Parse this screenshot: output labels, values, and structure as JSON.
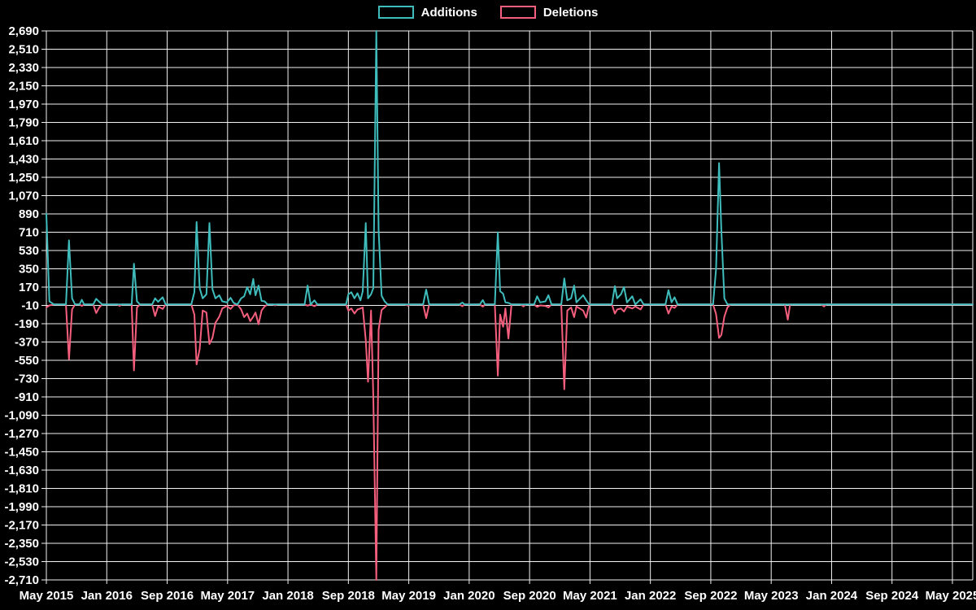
{
  "page": {
    "background_color": "#000000",
    "text_color": "#ffffff",
    "grid_color": "#f2f2f2"
  },
  "legend": {
    "items": [
      {
        "label": "Additions",
        "color": "#3fbcbc"
      },
      {
        "label": "Deletions",
        "color": "#f55f7d"
      }
    ]
  },
  "chart_data": {
    "type": "line",
    "title": "",
    "description": "Weekly code additions (teal, positive) and deletions (pink, negative) over time",
    "legend_position": "top-center",
    "grid": true,
    "x_axis": {
      "tick_labels": [
        "May 2015",
        "Jan 2016",
        "Sep 2016",
        "May 2017",
        "Jan 2018",
        "Sep 2018",
        "May 2019",
        "Jan 2020",
        "Sep 2020",
        "May 2021",
        "Jan 2022",
        "Sep 2022",
        "May 2023",
        "Jan 2024",
        "Sep 2024",
        "May 2025"
      ],
      "months_per_tick": 8,
      "months_total_plotted": 122.7
    },
    "y_axis": {
      "min": -2710,
      "max": 2690,
      "tick_step": 180,
      "baseline_value": 0
    },
    "series": [
      {
        "name": "Additions",
        "color": "#3fbcbc",
        "value_index": 1
      },
      {
        "name": "Deletions",
        "color": "#f55f7d",
        "value_index": 2
      }
    ],
    "points_format": "[months_since_May_2015, additions, deletions]",
    "points": [
      [
        0,
        890,
        -30
      ],
      [
        0.4,
        30,
        -10
      ],
      [
        1,
        0,
        0
      ],
      [
        2.6,
        0,
        0
      ],
      [
        3,
        630,
        -540
      ],
      [
        3.4,
        60,
        -50
      ],
      [
        3.8,
        0,
        0
      ],
      [
        4.4,
        0,
        0
      ],
      [
        4.7,
        45,
        -15
      ],
      [
        5,
        0,
        0
      ],
      [
        6.2,
        0,
        0
      ],
      [
        6.6,
        55,
        -85
      ],
      [
        7,
        25,
        -30
      ],
      [
        7.4,
        0,
        0
      ],
      [
        9.4,
        0,
        0
      ],
      [
        9.7,
        0,
        -15
      ],
      [
        10,
        0,
        0
      ],
      [
        11.3,
        0,
        0
      ],
      [
        11.6,
        400,
        -650
      ],
      [
        12,
        30,
        -30
      ],
      [
        12.4,
        0,
        0
      ],
      [
        14,
        0,
        0
      ],
      [
        14.4,
        60,
        -115
      ],
      [
        14.8,
        25,
        -20
      ],
      [
        15.4,
        70,
        -45
      ],
      [
        15.8,
        0,
        0
      ],
      [
        19.2,
        0,
        0
      ],
      [
        19.6,
        120,
        -100
      ],
      [
        19.9,
        810,
        -590
      ],
      [
        20.3,
        160,
        -440
      ],
      [
        20.7,
        60,
        -60
      ],
      [
        21.2,
        100,
        -80
      ],
      [
        21.6,
        800,
        -390
      ],
      [
        22,
        150,
        -330
      ],
      [
        22.4,
        60,
        -180
      ],
      [
        22.9,
        90,
        -120
      ],
      [
        23.3,
        30,
        -40
      ],
      [
        23.9,
        20,
        -15
      ],
      [
        24.4,
        65,
        -45
      ],
      [
        24.8,
        15,
        -10
      ],
      [
        25.3,
        0,
        0
      ],
      [
        25.8,
        60,
        -50
      ],
      [
        26.2,
        80,
        -125
      ],
      [
        26.6,
        170,
        -90
      ],
      [
        27,
        100,
        -165
      ],
      [
        27.4,
        250,
        -120
      ],
      [
        27.7,
        90,
        -80
      ],
      [
        28.1,
        185,
        -195
      ],
      [
        28.5,
        35,
        -60
      ],
      [
        28.9,
        30,
        -20
      ],
      [
        29.3,
        0,
        0
      ],
      [
        30,
        0,
        0
      ],
      [
        30.3,
        0,
        -10
      ],
      [
        30.6,
        0,
        0
      ],
      [
        34.2,
        0,
        0
      ],
      [
        34.6,
        185,
        -12
      ],
      [
        35,
        0,
        0
      ],
      [
        35.5,
        40,
        -18
      ],
      [
        35.9,
        0,
        0
      ],
      [
        39.7,
        0,
        0
      ],
      [
        40,
        100,
        -60
      ],
      [
        40.4,
        120,
        -40
      ],
      [
        40.8,
        60,
        -90
      ],
      [
        41.2,
        110,
        -50
      ],
      [
        41.6,
        40,
        -40
      ],
      [
        41.9,
        130,
        -30
      ],
      [
        42.3,
        800,
        -350
      ],
      [
        42.6,
        60,
        -760
      ],
      [
        43,
        100,
        -60
      ],
      [
        43.3,
        160,
        -915
      ],
      [
        43.7,
        2690,
        -2710
      ],
      [
        44,
        730,
        -250
      ],
      [
        44.4,
        85,
        -55
      ],
      [
        44.8,
        30,
        -30
      ],
      [
        45.2,
        0,
        0
      ],
      [
        47.5,
        0,
        0
      ],
      [
        47.9,
        0,
        -12
      ],
      [
        48.2,
        0,
        0
      ],
      [
        49.9,
        0,
        0
      ],
      [
        50.3,
        145,
        -135
      ],
      [
        50.7,
        0,
        0
      ],
      [
        54.7,
        0,
        0
      ],
      [
        55.1,
        18,
        -18
      ],
      [
        55.4,
        0,
        0
      ],
      [
        57.4,
        0,
        0
      ],
      [
        57.8,
        42,
        -22
      ],
      [
        58.1,
        0,
        0
      ],
      [
        59.4,
        0,
        0
      ],
      [
        59.8,
        710,
        -700
      ],
      [
        60.1,
        130,
        -100
      ],
      [
        60.5,
        105,
        -220
      ],
      [
        60.8,
        20,
        -40
      ],
      [
        61.2,
        15,
        -335
      ],
      [
        61.6,
        0,
        0
      ],
      [
        62.8,
        0,
        0
      ],
      [
        63.2,
        0,
        -20
      ],
      [
        63.5,
        0,
        0
      ],
      [
        64.6,
        0,
        0
      ],
      [
        65,
        80,
        -25
      ],
      [
        65.4,
        20,
        -10
      ],
      [
        66.1,
        30,
        -15
      ],
      [
        66.5,
        90,
        -30
      ],
      [
        66.9,
        0,
        0
      ],
      [
        68.2,
        0,
        0
      ],
      [
        68.6,
        255,
        -835
      ],
      [
        69,
        40,
        -60
      ],
      [
        69.5,
        60,
        -30
      ],
      [
        69.9,
        185,
        -125
      ],
      [
        70.2,
        20,
        -20
      ],
      [
        71.1,
        90,
        -60
      ],
      [
        71.5,
        40,
        -130
      ],
      [
        71.9,
        0,
        0
      ],
      [
        74.9,
        0,
        0
      ],
      [
        75.3,
        180,
        -90
      ],
      [
        75.6,
        60,
        -50
      ],
      [
        76.1,
        100,
        -40
      ],
      [
        76.5,
        170,
        -70
      ],
      [
        76.9,
        20,
        -20
      ],
      [
        77.6,
        80,
        -40
      ],
      [
        78,
        0,
        -20
      ],
      [
        78.7,
        50,
        -50
      ],
      [
        79.1,
        0,
        0
      ],
      [
        82,
        0,
        0
      ],
      [
        82.4,
        140,
        -90
      ],
      [
        82.8,
        20,
        -20
      ],
      [
        83.2,
        70,
        -35
      ],
      [
        83.6,
        0,
        0
      ],
      [
        88.3,
        0,
        0
      ],
      [
        88.7,
        345,
        -95
      ],
      [
        89.1,
        1390,
        -330
      ],
      [
        89.4,
        730,
        -300
      ],
      [
        89.8,
        60,
        -120
      ],
      [
        90.2,
        0,
        -30
      ],
      [
        90.6,
        0,
        0
      ],
      [
        97.8,
        0,
        0
      ],
      [
        98.2,
        0,
        -150
      ],
      [
        98.5,
        0,
        0
      ],
      [
        102.6,
        0,
        0
      ],
      [
        103,
        0,
        -20
      ],
      [
        103.3,
        0,
        0
      ],
      [
        122.7,
        0,
        0
      ]
    ]
  }
}
